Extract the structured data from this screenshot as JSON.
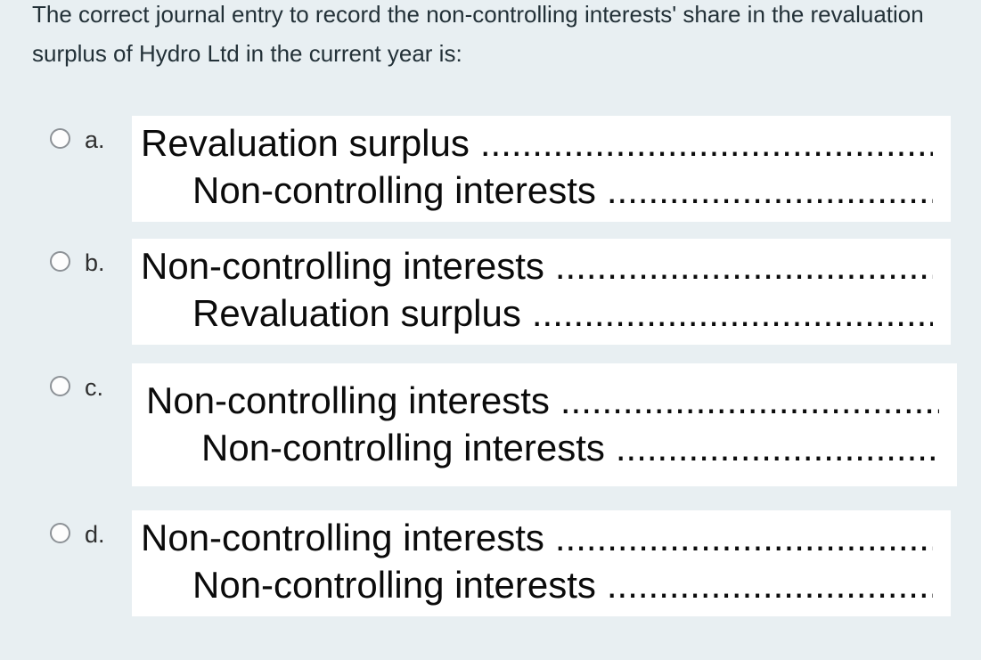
{
  "question": {
    "text": "The correct journal entry to record the non-controlling interests' share in the revaluation surplus of Hydro Ltd in the current year is:"
  },
  "options": [
    {
      "key": "a.",
      "debit": "Revaluation surplus",
      "credit": "Non-controlling interests"
    },
    {
      "key": "b.",
      "debit": "Non-controlling interests",
      "credit": "Revaluation surplus"
    },
    {
      "key": "c.",
      "debit": "Non-controlling interests",
      "credit": "Non-controlling interests"
    },
    {
      "key": "d.",
      "debit": "Non-controlling interests",
      "credit": "Non-controlling interests"
    }
  ],
  "dots": "..........................................................................................",
  "colors": {
    "background": "#e8eff2",
    "entry_box_background": "#ffffff",
    "question_text": "#233138",
    "entry_text": "#0b0b0b",
    "radio_border": "#8d9297",
    "option_letter": "#2f2f2f"
  }
}
